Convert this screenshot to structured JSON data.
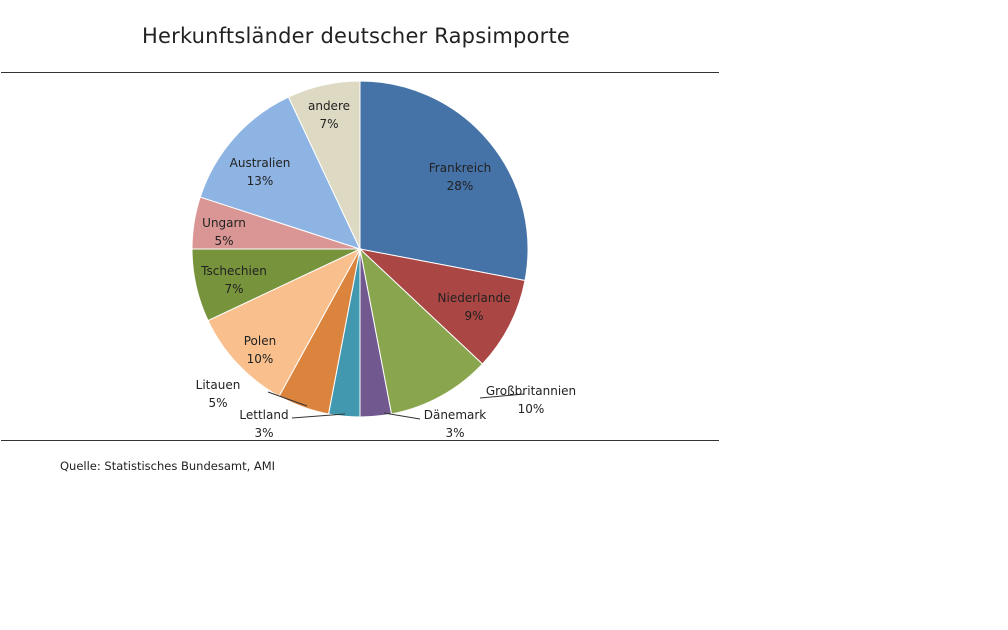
{
  "chart_data": {
    "type": "pie",
    "title": "Herkunftsländer deutscher Rapsimporte",
    "slices": [
      {
        "label": "Frankreich",
        "value": 28,
        "display": "28%",
        "color": "#4572A7"
      },
      {
        "label": "Niederlande",
        "value": 9,
        "display": "9%",
        "color": "#AA4643"
      },
      {
        "label": "Großbritannien",
        "value": 10,
        "display": "10%",
        "color": "#89A54E"
      },
      {
        "label": "Dänemark",
        "value": 3,
        "display": "3%",
        "color": "#71588F"
      },
      {
        "label": "Lettland",
        "value": 3,
        "display": "3%",
        "color": "#4198AF"
      },
      {
        "label": "Litauen",
        "value": 5,
        "display": "5%",
        "color": "#DB843D"
      },
      {
        "label": "Polen",
        "value": 10,
        "display": "10%",
        "color": "#F9C08E"
      },
      {
        "label": "Tschechien",
        "value": 7,
        "display": "7%",
        "color": "#77933C"
      },
      {
        "label": "Ungarn",
        "value": 5,
        "display": "5%",
        "color": "#D99694"
      },
      {
        "label": "Australien",
        "value": 13,
        "display": "13%",
        "color": "#8EB4E3"
      },
      {
        "label": "andere",
        "value": 7,
        "display": "7%",
        "color": "#DDD9C3"
      }
    ]
  },
  "source": "Quelle: Statistisches Bundesamt, AMI"
}
